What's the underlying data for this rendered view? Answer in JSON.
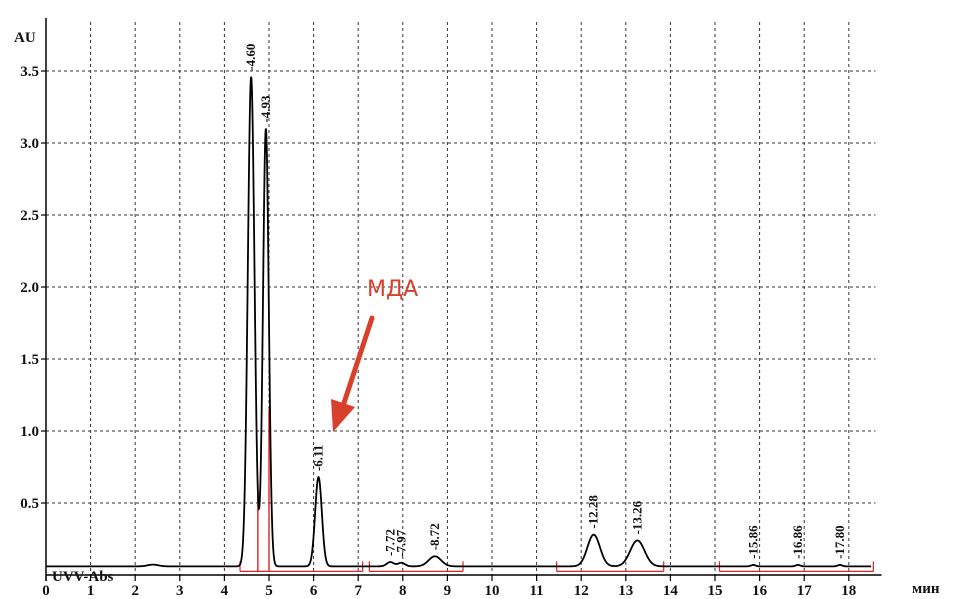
{
  "chart_data": {
    "type": "line",
    "ylabel": "AU",
    "xlabel": "мин",
    "detector_label": "UVV-Abs",
    "xlim": [
      0,
      18.6
    ],
    "ylim": [
      0,
      3.75
    ],
    "xticks": [
      0,
      1,
      2,
      3,
      4,
      5,
      6,
      7,
      8,
      9,
      10,
      11,
      12,
      13,
      14,
      15,
      16,
      17,
      18
    ],
    "yticks": [
      0.5,
      1.0,
      1.5,
      2.0,
      2.5,
      3.0,
      3.5
    ],
    "ytick_labels": [
      "0.5",
      "1.0",
      "1.5",
      "2.0",
      "2.5",
      "3.0",
      "3.5"
    ],
    "grid": true,
    "baseline": 0.06,
    "peaks": [
      {
        "rt": 4.6,
        "label": "4.60",
        "height": 3.4,
        "width": 0.075
      },
      {
        "rt": 4.93,
        "label": "4.93",
        "height": 3.04,
        "width": 0.065
      },
      {
        "rt": 6.11,
        "label": "6.11",
        "height": 0.62,
        "width": 0.075
      },
      {
        "rt": 7.72,
        "label": "7.72",
        "height": 0.03,
        "width": 0.08
      },
      {
        "rt": 7.97,
        "label": "7.97",
        "height": 0.025,
        "width": 0.08
      },
      {
        "rt": 8.72,
        "label": "8.72",
        "height": 0.07,
        "width": 0.14
      },
      {
        "rt": 12.28,
        "label": "12.28",
        "height": 0.22,
        "width": 0.14
      },
      {
        "rt": 13.26,
        "label": "13.26",
        "height": 0.18,
        "width": 0.16
      },
      {
        "rt": 15.86,
        "label": "15.86",
        "height": 0.01,
        "width": 0.05
      },
      {
        "rt": 16.86,
        "label": "16.86",
        "height": 0.01,
        "width": 0.05
      },
      {
        "rt": 17.8,
        "label": "17.80",
        "height": 0.01,
        "width": 0.05
      }
    ],
    "minor_bumps": [
      {
        "rt": 2.4,
        "height": 0.012,
        "width": 0.12
      }
    ],
    "integration_segments": [
      [
        4.35,
        7.1
      ],
      [
        7.25,
        9.35
      ],
      [
        11.45,
        13.85
      ],
      [
        15.1,
        18.55
      ]
    ],
    "integration_markers": [
      4.75,
      5.0
    ],
    "annotation": {
      "text": "МДА",
      "color": "#d9402b"
    }
  }
}
